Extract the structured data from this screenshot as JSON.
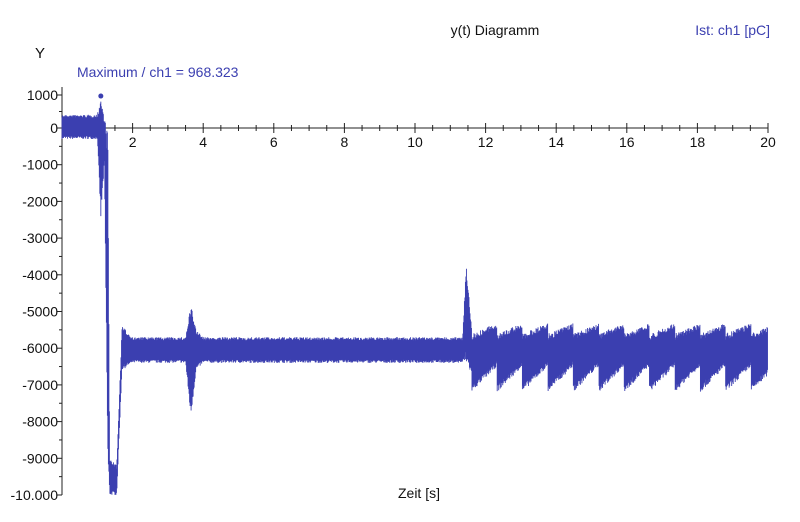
{
  "chart_data": {
    "type": "line",
    "title": "y(t) Diagramm",
    "legend": "Ist: ch1 [pC]",
    "legend_placement": "top-right",
    "xlabel": "Zeit [s]",
    "ylabel": "Y",
    "annotation": "Maximum / ch1 = 968.323",
    "xlim": [
      0,
      20
    ],
    "ylim": [
      -10000,
      1000
    ],
    "x_ticks": [
      2,
      4,
      6,
      8,
      10,
      12,
      14,
      16,
      18,
      20
    ],
    "y_ticks": [
      1000,
      0,
      -1000,
      -2000,
      -3000,
      -4000,
      -5000,
      -6000,
      -7000,
      -8000,
      -9000,
      -10000
    ],
    "y_tick_labels": [
      "1000",
      "0",
      "-1000",
      "-2000",
      "-3000",
      "-4000",
      "-5000",
      "-6000",
      "-7000",
      "-8000",
      "-9000",
      "-10.000"
    ],
    "grid": false,
    "series": [
      {
        "name": "Ist: ch1 [pC]",
        "color": "#3b3fb0",
        "envelope": [
          {
            "x": 0.0,
            "min": -300,
            "max": 400
          },
          {
            "x": 1.0,
            "min": -300,
            "max": 400
          },
          {
            "x": 1.1,
            "min": -2500,
            "max": 968.323
          },
          {
            "x": 1.2,
            "min": -1000,
            "max": 300
          },
          {
            "x": 1.3,
            "min": -9500,
            "max": 0
          },
          {
            "x": 1.35,
            "min": -10000,
            "max": -9000
          },
          {
            "x": 1.55,
            "min": -10000,
            "max": -9200
          },
          {
            "x": 1.7,
            "min": -6600,
            "max": -5400
          },
          {
            "x": 2.0,
            "min": -6400,
            "max": -5700
          },
          {
            "x": 3.5,
            "min": -6400,
            "max": -5700
          },
          {
            "x": 3.65,
            "min": -7900,
            "max": -4800
          },
          {
            "x": 3.8,
            "min": -6600,
            "max": -5500
          },
          {
            "x": 4.0,
            "min": -6400,
            "max": -5700
          },
          {
            "x": 11.35,
            "min": -6400,
            "max": -5700
          },
          {
            "x": 11.45,
            "min": -6400,
            "max": -3650
          },
          {
            "x": 11.6,
            "min": -6700,
            "max": -5400
          },
          {
            "x": 20.0,
            "min": -6700,
            "max": -5400
          }
        ]
      }
    ]
  }
}
